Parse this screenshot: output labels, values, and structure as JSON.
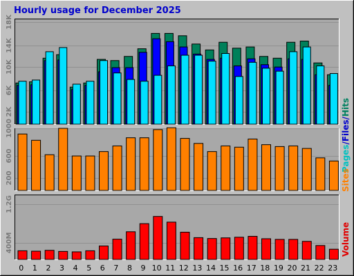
{
  "title": "Hourly usage for December 2025",
  "colors": {
    "background": "#c0c0c0",
    "plot_bg": "#a8a8a8",
    "grid": "#909090",
    "title": "#0000cc",
    "hits": "#00805a",
    "files": "#0000ff",
    "pages": "#00e0ff",
    "sites": "#ff8000",
    "volume": "#ff0000",
    "tick_text": "#7a7a7a"
  },
  "chart_data": [
    {
      "type": "bar",
      "title": "Hourly usage for December 2025",
      "categories": [
        "0",
        "1",
        "2",
        "3",
        "4",
        "5",
        "6",
        "7",
        "8",
        "9",
        "10",
        "11",
        "12",
        "13",
        "14",
        "15",
        "16",
        "17",
        "18",
        "19",
        "20",
        "21",
        "22",
        "23"
      ],
      "ylim": [
        0,
        18000
      ],
      "y_ticks": [
        "2K",
        "6K",
        "10K",
        "14K",
        "18K"
      ],
      "ylabel_parts": [
        "Pages",
        "/",
        "Files",
        "/",
        "Hits"
      ],
      "series": [
        {
          "name": "Hits",
          "values": [
            7100,
            7300,
            11300,
            11900,
            6400,
            7100,
            11100,
            10900,
            11600,
            12900,
            15500,
            15500,
            15100,
            13700,
            12700,
            14000,
            13000,
            13200,
            11600,
            11300,
            14000,
            14200,
            10500,
            8500
          ]
        },
        {
          "name": "Files",
          "values": [
            6700,
            6800,
            10900,
            11000,
            6000,
            6700,
            9000,
            9700,
            9700,
            12300,
            14600,
            14100,
            13200,
            12000,
            11100,
            11300,
            10000,
            11200,
            10200,
            9800,
            11200,
            11100,
            8500,
            6700
          ]
        },
        {
          "name": "Pages",
          "values": [
            7400,
            7600,
            12400,
            13100,
            6900,
            7400,
            10900,
            8800,
            7700,
            7400,
            8400,
            10000,
            11800,
            11800,
            10800,
            12100,
            8200,
            10600,
            9600,
            9100,
            12400,
            13200,
            10000,
            8700
          ]
        }
      ]
    },
    {
      "type": "bar",
      "categories": [
        "0",
        "1",
        "2",
        "3",
        "4",
        "5",
        "6",
        "7",
        "8",
        "9",
        "10",
        "11",
        "12",
        "13",
        "14",
        "15",
        "16",
        "17",
        "18",
        "19",
        "20",
        "21",
        "22",
        "23"
      ],
      "ylim": [
        0,
        1000
      ],
      "y_ticks": [
        "200",
        "600",
        "1000"
      ],
      "ylabel": "Sites",
      "series": [
        {
          "name": "Sites",
          "values": [
            910,
            810,
            580,
            1000,
            560,
            560,
            630,
            720,
            850,
            850,
            980,
            1010,
            840,
            760,
            630,
            720,
            700,
            830,
            740,
            710,
            720,
            680,
            530,
            480
          ]
        }
      ]
    },
    {
      "type": "bar",
      "categories": [
        "0",
        "1",
        "2",
        "3",
        "4",
        "5",
        "6",
        "7",
        "8",
        "9",
        "10",
        "11",
        "12",
        "13",
        "14",
        "15",
        "16",
        "17",
        "18",
        "19",
        "20",
        "21",
        "22",
        "23"
      ],
      "ylim": [
        0,
        1500
      ],
      "y_ticks": [
        "400M",
        "1.2G"
      ],
      "ylabel": "Volume",
      "series": [
        {
          "name": "Volume",
          "values": [
            215,
            205,
            225,
            200,
            190,
            215,
            325,
            480,
            650,
            835,
            1000,
            870,
            640,
            515,
            495,
            510,
            525,
            545,
            490,
            475,
            475,
            430,
            335,
            250
          ]
        }
      ]
    }
  ]
}
